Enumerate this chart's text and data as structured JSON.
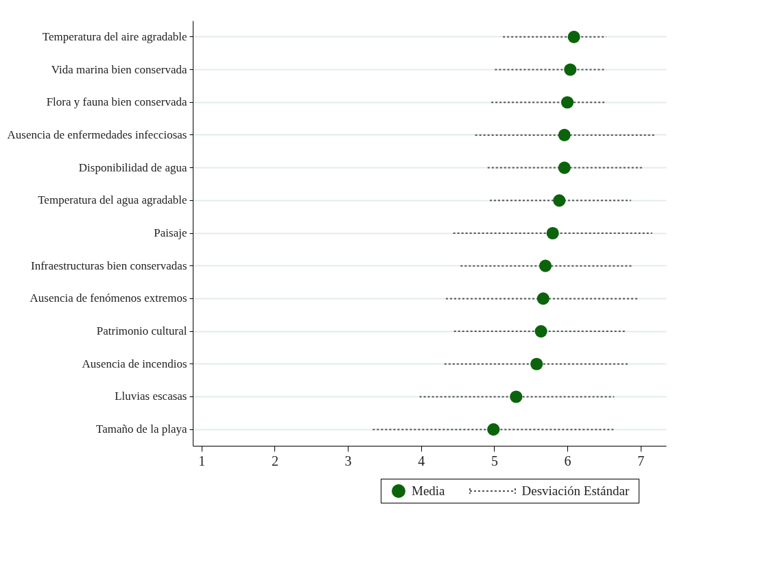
{
  "chart_data": {
    "type": "scatter",
    "orientation": "horizontal",
    "categories": [
      "Temperatura del aire agradable",
      "Vida marina bien conservada",
      "Flora y fauna bien conservada",
      "Ausencia de enfermedades infecciosas",
      "Disponibilidad de agua",
      "Temperatura del agua agradable",
      "Paisaje",
      "Infraestructuras bien conservadas",
      "Ausencia de fenómenos extremos",
      "Patrimonio cultural",
      "Ausencia de incendios",
      "Lluvias escasas",
      "Tamaño de la playa"
    ],
    "series": [
      {
        "name": "Media",
        "color": "#0b640b",
        "values": [
          6.09,
          6.04,
          6.0,
          5.96,
          5.96,
          5.89,
          5.8,
          5.7,
          5.67,
          5.64,
          5.58,
          5.3,
          4.99
        ],
        "errors": [
          [
            5.12,
            6.53
          ],
          [
            5.01,
            6.53
          ],
          [
            4.96,
            6.52
          ],
          [
            4.74,
            7.19
          ],
          [
            4.91,
            7.03
          ],
          [
            4.94,
            6.87
          ],
          [
            4.44,
            7.16
          ],
          [
            4.54,
            6.88
          ],
          [
            4.34,
            6.98
          ],
          [
            4.45,
            6.81
          ],
          [
            4.32,
            6.85
          ],
          [
            3.98,
            6.64
          ],
          [
            3.34,
            6.63
          ]
        ]
      }
    ],
    "annotations": [
      "Desviación Estándar"
    ],
    "xlim": [
      0.88,
      7.35
    ],
    "xticks": [
      {
        "value": 1,
        "label": "1"
      },
      {
        "value": 2,
        "label": "2"
      },
      {
        "value": 3,
        "label": "3"
      },
      {
        "value": 4,
        "label": "4"
      },
      {
        "value": 5,
        "label": "5"
      },
      {
        "value": 6,
        "label": "6"
      },
      {
        "value": 7,
        "label": "7"
      }
    ],
    "grid": "y",
    "legend": "bottom",
    "marker": "circle"
  }
}
